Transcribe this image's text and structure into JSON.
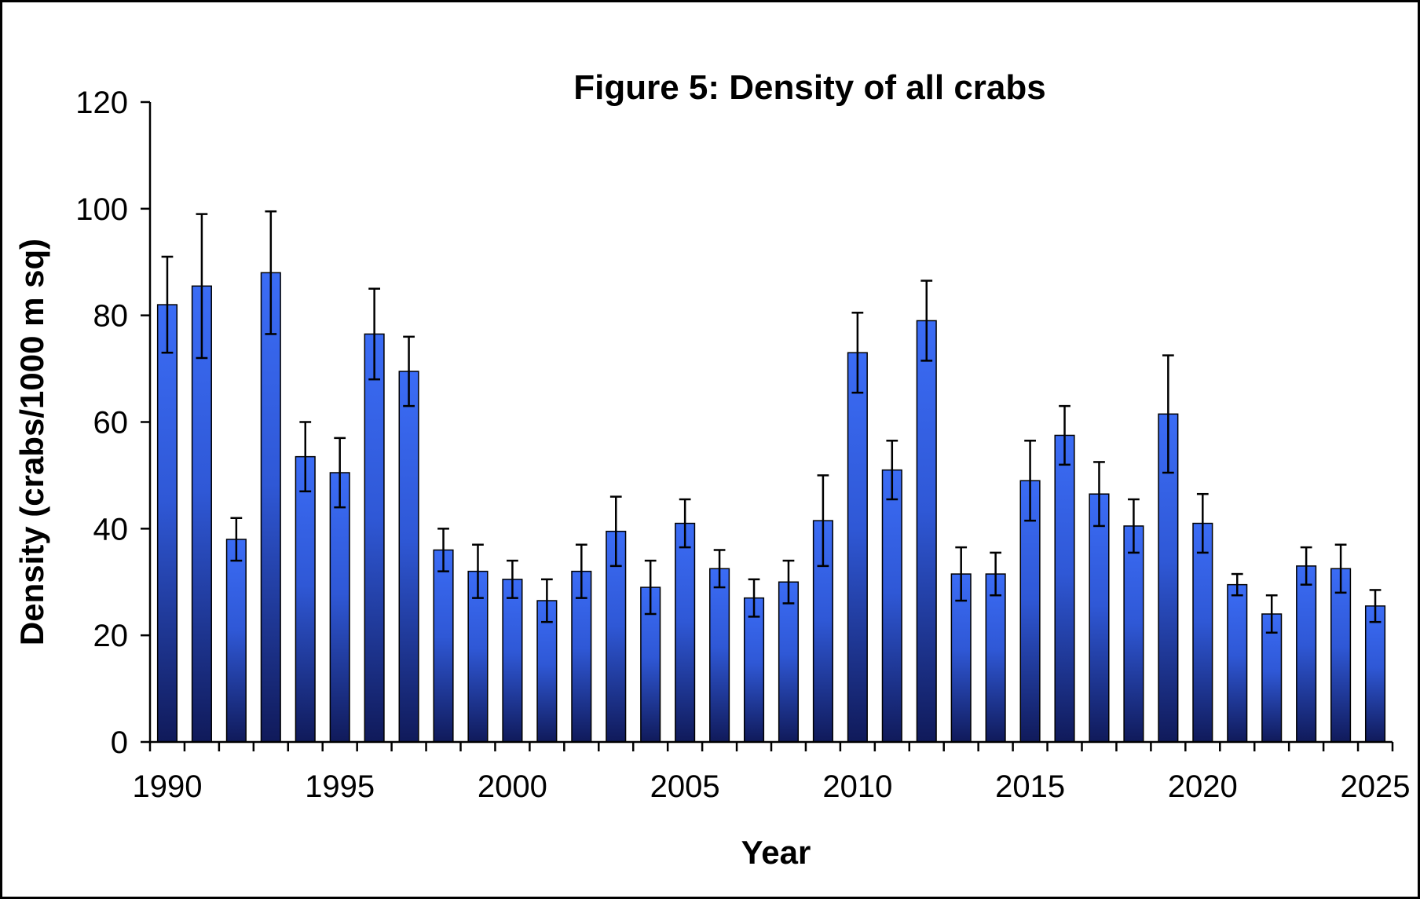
{
  "chart_data": {
    "type": "bar",
    "title": "Figure 5: Density of all crabs",
    "xlabel": "Year",
    "ylabel": "Density  (crabs/1000  m sq)",
    "xlim": [
      1989.5,
      2025.5
    ],
    "ylim": [
      0,
      120
    ],
    "x_ticks": [
      1990,
      1995,
      2000,
      2005,
      2010,
      2015,
      2020,
      2025
    ],
    "y_ticks": [
      0,
      20,
      40,
      60,
      80,
      100,
      120
    ],
    "grid": false,
    "legend": "none",
    "bar_color_top": "#3b6cf5",
    "bar_color_bottom": "#101a5a",
    "categories": [
      1990,
      1991,
      1992,
      1993,
      1994,
      1995,
      1996,
      1997,
      1998,
      1999,
      2000,
      2001,
      2002,
      2003,
      2004,
      2005,
      2006,
      2007,
      2008,
      2009,
      2010,
      2011,
      2012,
      2013,
      2014,
      2015,
      2016,
      2017,
      2018,
      2019,
      2020,
      2021,
      2022,
      2023,
      2024,
      2025
    ],
    "values": [
      82,
      85.5,
      38,
      88,
      53.5,
      50.5,
      76.5,
      69.5,
      36,
      32,
      30.5,
      26.5,
      32,
      39.5,
      29,
      41,
      32.5,
      27,
      30,
      41.5,
      73,
      51,
      79,
      31.5,
      31.5,
      49,
      57.5,
      46.5,
      40.5,
      61.5,
      41,
      29.5,
      24,
      33,
      32.5,
      25.5
    ],
    "error": [
      9,
      13.5,
      4,
      11.5,
      6.5,
      6.5,
      8.5,
      6.5,
      4,
      5,
      3.5,
      4,
      5,
      6.5,
      5,
      4.5,
      3.5,
      3.5,
      4,
      8.5,
      7.5,
      5.5,
      7.5,
      5,
      4,
      7.5,
      5.5,
      6,
      5,
      11,
      5.5,
      2,
      3.5,
      3.5,
      4.5,
      3
    ]
  }
}
